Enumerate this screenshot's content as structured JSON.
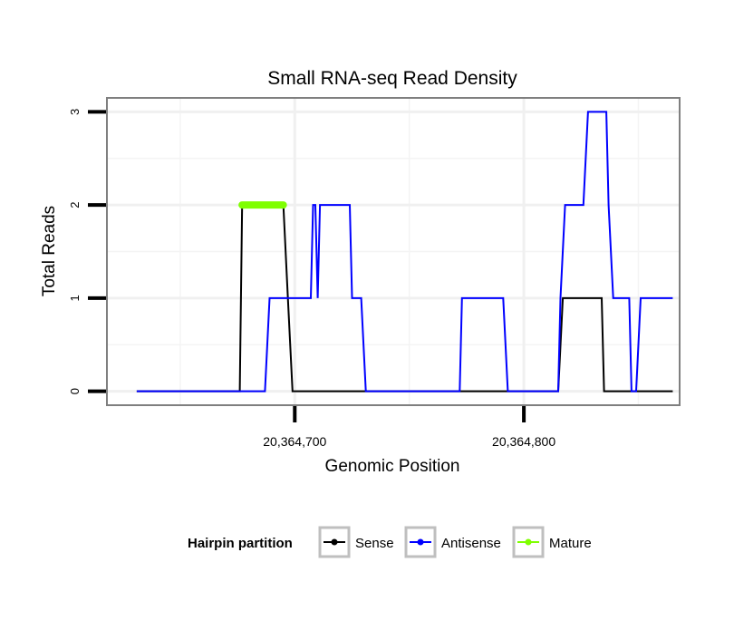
{
  "chart_data": {
    "type": "line",
    "title": "Small RNA-seq Read Density",
    "xlabel": "Genomic Position",
    "ylabel": "Total Reads",
    "xlim": [
      20364618,
      20364868
    ],
    "ylim": [
      -0.15,
      3.15
    ],
    "x_ticks": [
      {
        "value": 20364700,
        "label": "20,364,700"
      },
      {
        "value": 20364800,
        "label": "20,364,800"
      }
    ],
    "y_ticks": [
      {
        "value": 0,
        "label": "0"
      },
      {
        "value": 1,
        "label": "1"
      },
      {
        "value": 2,
        "label": "2"
      },
      {
        "value": 3,
        "label": "3"
      }
    ],
    "x_minor_grid": [
      20364650,
      20364750,
      20364850
    ],
    "y_minor_grid": [
      0.5,
      1.5,
      2.5
    ],
    "grid": true,
    "legend": {
      "title": "Hairpin partition",
      "position": "bottom"
    },
    "series": [
      {
        "name": "Sense",
        "color": "#000000",
        "style": "line",
        "x": [
          20364631,
          20364676,
          20364677,
          20364695,
          20364697,
          20364699,
          20364815,
          20364817,
          20364834,
          20364835,
          20364865
        ],
        "y": [
          0,
          0,
          2,
          2,
          1,
          0,
          0,
          1,
          1,
          0,
          0
        ]
      },
      {
        "name": "Antisense",
        "color": "#0000ff",
        "style": "line",
        "x": [
          20364631,
          20364687,
          20364689,
          20364707,
          20364708,
          20364709,
          20364710,
          20364711,
          20364712,
          20364724,
          20364725,
          20364729,
          20364731,
          20364772,
          20364773,
          20364791,
          20364793,
          20364815,
          20364816,
          20364818,
          20364826,
          20364828,
          20364836,
          20364837,
          20364839,
          20364846,
          20364847,
          20364849,
          20364851,
          20364865
        ],
        "y": [
          0,
          0,
          1,
          1,
          2,
          2,
          1,
          2,
          2,
          2,
          1,
          1,
          0,
          0,
          1,
          1,
          0,
          0,
          1,
          2,
          2,
          3,
          3,
          2,
          1,
          1,
          0,
          0,
          1,
          1
        ]
      },
      {
        "name": "Mature",
        "color": "#7fff00",
        "style": "thick-segment",
        "x": [
          20364677,
          20364695
        ],
        "y": [
          2,
          2
        ]
      }
    ]
  }
}
